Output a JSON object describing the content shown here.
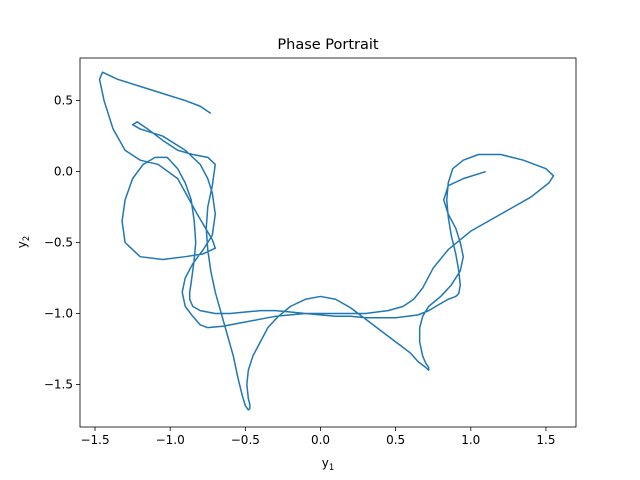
{
  "chart_data": {
    "type": "line",
    "title": "Phase Portrait",
    "xlabel": {
      "base": "y",
      "sub": "1"
    },
    "ylabel": {
      "base": "y",
      "sub": "2"
    },
    "xlim": [
      -1.6,
      1.7
    ],
    "ylim": [
      -1.8,
      0.8
    ],
    "xticks": [
      -1.5,
      -1.0,
      -0.5,
      0.0,
      0.5,
      1.0,
      1.5
    ],
    "xtick_labels": [
      "−1.5",
      "−1.0",
      "−0.5",
      "0.0",
      "0.5",
      "1.0",
      "1.5"
    ],
    "yticks": [
      -1.5,
      -1.0,
      -0.5,
      0.0,
      0.5
    ],
    "ytick_labels": [
      "−1.5",
      "−1.0",
      "−0.5",
      "0.0",
      "0.5"
    ],
    "grid": false,
    "legend": "none",
    "line_color": "#1f77b4",
    "series": [
      {
        "x": [
          1.1,
          0.95,
          0.85,
          0.82,
          0.85,
          0.9,
          0.93,
          0.95,
          0.93,
          0.87,
          0.8,
          0.72,
          0.68,
          0.66,
          0.66,
          0.68,
          0.7,
          0.72,
          0.72,
          0.7,
          0.65,
          0.6,
          0.5,
          0.4,
          0.3,
          0.2,
          0.1,
          0.0,
          -0.1,
          -0.2,
          -0.28,
          -0.35,
          -0.4,
          -0.45,
          -0.48,
          -0.49,
          -0.48,
          -0.47,
          -0.47,
          -0.48,
          -0.5,
          -0.52,
          -0.55,
          -0.58,
          -0.62,
          -0.66,
          -0.7,
          -0.73,
          -0.75,
          -0.76,
          -0.75,
          -0.72,
          -0.7,
          -0.75,
          -0.85,
          -0.95,
          -1.05,
          -1.15,
          -1.22,
          -1.25,
          -1.2,
          -1.05,
          -0.9,
          -0.8,
          -0.75,
          -0.72,
          -0.7,
          -0.72,
          -0.78,
          -0.85,
          -0.9,
          -0.92,
          -0.9,
          -0.85,
          -0.8,
          -0.75,
          -0.65,
          -0.5,
          -0.3,
          -0.1,
          0.1,
          0.3,
          0.45,
          0.55,
          0.62,
          0.68,
          0.75,
          0.85,
          1.0,
          1.2,
          1.4,
          1.52,
          1.55,
          1.5,
          1.35,
          1.2,
          1.05,
          0.95,
          0.88,
          0.85,
          0.84,
          0.85,
          0.87,
          0.9,
          0.92,
          0.93,
          0.92,
          0.9,
          0.85,
          0.8,
          0.72,
          0.65,
          0.58,
          0.5,
          0.4,
          0.3,
          0.2,
          0.1,
          0.0,
          -0.1,
          -0.2,
          -0.3,
          -0.4,
          -0.5,
          -0.6,
          -0.7,
          -0.8,
          -0.85,
          -0.87,
          -0.87,
          -0.86,
          -0.85,
          -0.84,
          -0.83,
          -0.84,
          -0.86,
          -0.9,
          -0.95,
          -1.02,
          -1.1,
          -1.18,
          -1.25,
          -1.3,
          -1.32,
          -1.3,
          -1.2,
          -1.05,
          -0.9,
          -0.78,
          -0.7,
          -0.72,
          -0.82,
          -0.95,
          -1.08,
          -1.2,
          -1.3,
          -1.38,
          -1.44,
          -1.47,
          -1.45,
          -1.35,
          -1.2,
          -1.05,
          -0.9,
          -0.8,
          -0.73
        ],
        "y": [
          0.0,
          -0.05,
          -0.1,
          -0.2,
          -0.3,
          -0.4,
          -0.5,
          -0.6,
          -0.7,
          -0.8,
          -0.88,
          -0.95,
          -1.02,
          -1.1,
          -1.2,
          -1.3,
          -1.35,
          -1.38,
          -1.4,
          -1.38,
          -1.34,
          -1.28,
          -1.2,
          -1.12,
          -1.04,
          -0.96,
          -0.9,
          -0.88,
          -0.9,
          -0.95,
          -1.02,
          -1.1,
          -1.2,
          -1.3,
          -1.4,
          -1.5,
          -1.6,
          -1.64,
          -1.67,
          -1.68,
          -1.65,
          -1.58,
          -1.45,
          -1.3,
          -1.15,
          -1.0,
          -0.85,
          -0.7,
          -0.55,
          -0.4,
          -0.25,
          -0.1,
          0.05,
          0.1,
          0.12,
          0.15,
          0.22,
          0.3,
          0.35,
          0.33,
          0.3,
          0.25,
          0.15,
          0.05,
          -0.05,
          -0.15,
          -0.3,
          -0.45,
          -0.55,
          -0.65,
          -0.75,
          -0.85,
          -0.95,
          -1.02,
          -1.08,
          -1.1,
          -1.09,
          -1.06,
          -1.02,
          -1.0,
          -1.0,
          -1.0,
          -0.98,
          -0.95,
          -0.9,
          -0.82,
          -0.68,
          -0.55,
          -0.42,
          -0.3,
          -0.18,
          -0.08,
          -0.03,
          0.02,
          0.08,
          0.12,
          0.12,
          0.08,
          0.02,
          -0.08,
          -0.2,
          -0.32,
          -0.45,
          -0.58,
          -0.7,
          -0.8,
          -0.86,
          -0.88,
          -0.9,
          -0.93,
          -0.98,
          -1.01,
          -1.02,
          -1.03,
          -1.03,
          -1.03,
          -1.02,
          -1.02,
          -1.01,
          -1.0,
          -0.99,
          -0.98,
          -0.98,
          -0.99,
          -1.0,
          -1.0,
          -0.98,
          -0.95,
          -0.9,
          -0.85,
          -0.78,
          -0.7,
          -0.62,
          -0.5,
          -0.35,
          -0.2,
          -0.08,
          0.02,
          0.1,
          0.1,
          0.05,
          -0.05,
          -0.2,
          -0.35,
          -0.5,
          -0.6,
          -0.62,
          -0.6,
          -0.58,
          -0.54,
          -0.48,
          -0.3,
          -0.05,
          0.05,
          0.08,
          0.15,
          0.3,
          0.5,
          0.65,
          0.7,
          0.65,
          0.6,
          0.55,
          0.5,
          0.46,
          0.41
        ]
      }
    ]
  }
}
